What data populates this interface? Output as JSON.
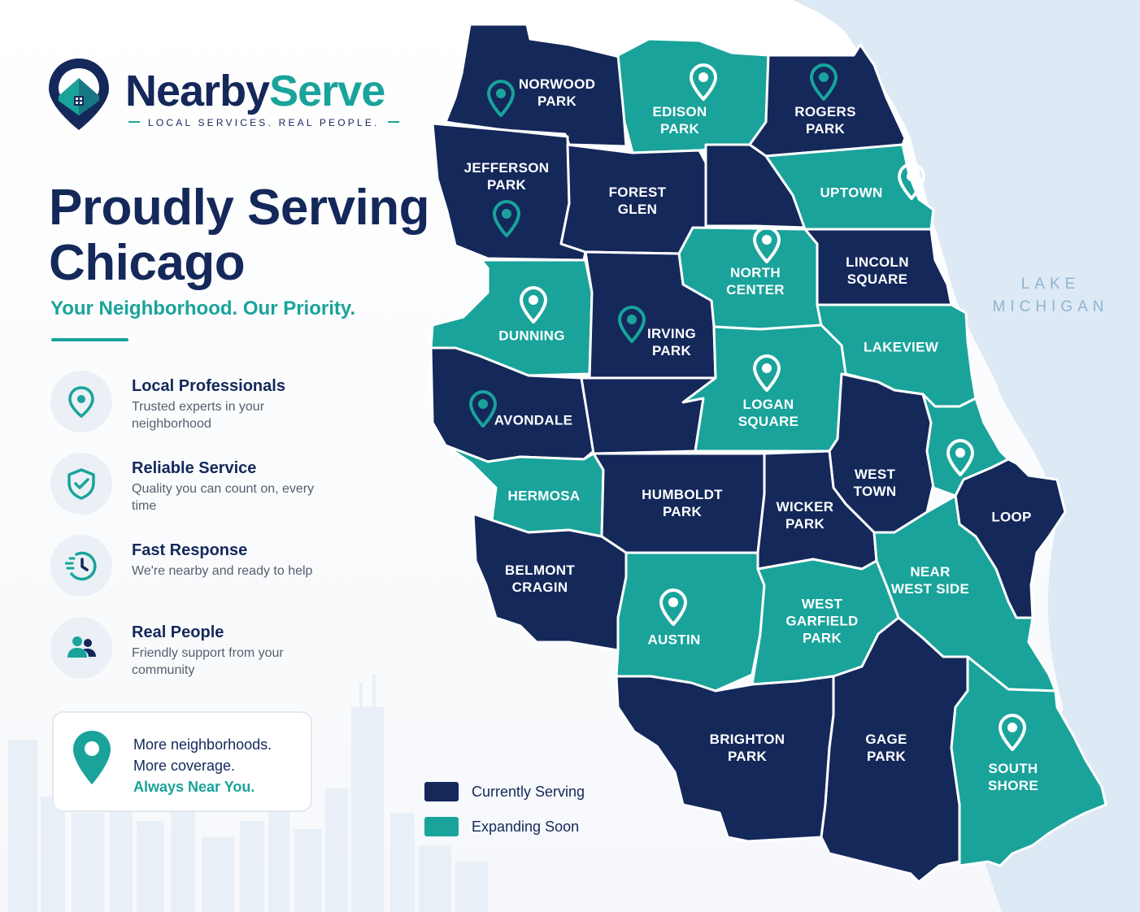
{
  "brand": {
    "name_part1": "Nearby",
    "name_part2": "Serve",
    "tagline": "LOCAL SERVICES. REAL PEOPLE."
  },
  "headline": {
    "line1": "Proudly Serving",
    "line2": "Chicago",
    "subheadline": "Your Neighborhood. Our Priority."
  },
  "features": [
    {
      "title": "Local Professionals",
      "description": "Trusted experts in your neighborhood",
      "icon": "location-pin-icon"
    },
    {
      "title": "Reliable Service",
      "description": "Quality you can count on, every time",
      "icon": "shield-check-icon"
    },
    {
      "title": "Fast Response",
      "description": "We're nearby and ready to help",
      "icon": "fast-clock-icon"
    },
    {
      "title": "Real People",
      "description": "Friendly support from your community",
      "icon": "people-icon"
    }
  ],
  "promo": {
    "line1": "More neighborhoods.",
    "line2": "More coverage.",
    "line3": "Always Near You.",
    "icon": "location-pin-icon"
  },
  "lake": {
    "line1": "LAKE",
    "line2": "MICHIGAN"
  },
  "legend": {
    "serving_label": "Currently Serving",
    "expanding_label": "Expanding Soon"
  },
  "colors": {
    "serving": "#14285a",
    "expanding": "#19a39b",
    "lake": "#dde9f5",
    "brand_navy": "#14285a",
    "brand_teal": "#19a39b"
  },
  "neighborhoods": [
    {
      "name": "NORWOOD\nPARK",
      "status": "serving",
      "pin": true
    },
    {
      "name": "EDISON\nPARK",
      "status": "expanding",
      "pin": true
    },
    {
      "name": "ROGERS\nPARK",
      "status": "serving",
      "pin": true
    },
    {
      "name": "JEFFERSON\nPARK",
      "status": "serving",
      "pin": true
    },
    {
      "name": "FOREST\nGLEN",
      "status": "serving",
      "pin": false
    },
    {
      "name": "UPTOWN",
      "status": "expanding",
      "pin": true
    },
    {
      "name": "NORTH\nCENTER",
      "status": "expanding",
      "pin": true
    },
    {
      "name": "LINCOLN\nSQUARE",
      "status": "serving",
      "pin": false
    },
    {
      "name": "DUNNING",
      "status": "expanding",
      "pin": true
    },
    {
      "name": "IRVING\nPARK",
      "status": "serving",
      "pin": true
    },
    {
      "name": "LAKEVIEW",
      "status": "expanding",
      "pin": false
    },
    {
      "name": "AVONDALE",
      "status": "serving",
      "pin": true
    },
    {
      "name": "LOGAN\nSQUARE",
      "status": "expanding",
      "pin": true
    },
    {
      "name": "WEST\nTOWN",
      "status": "serving",
      "pin": false
    },
    {
      "name": "HERMOSA",
      "status": "expanding",
      "pin": false
    },
    {
      "name": "HUMBOLDT\nPARK",
      "status": "serving",
      "pin": false
    },
    {
      "name": "WICKER\nPARK",
      "status": "serving",
      "pin": false
    },
    {
      "name": "LOOP",
      "status": "serving",
      "pin": false
    },
    {
      "name": "BELMONT\nCRAGIN",
      "status": "serving",
      "pin": false
    },
    {
      "name": "NEAR\nWEST SIDE",
      "status": "expanding",
      "pin": true
    },
    {
      "name": "AUSTIN",
      "status": "expanding",
      "pin": true
    },
    {
      "name": "WEST\nGARFIELD\nPARK",
      "status": "expanding",
      "pin": false
    },
    {
      "name": "BRIGHTON\nPARK",
      "status": "serving",
      "pin": false
    },
    {
      "name": "GAGE\nPARK",
      "status": "serving",
      "pin": false
    },
    {
      "name": "SOUTH\nSHORE",
      "status": "expanding",
      "pin": true
    }
  ]
}
